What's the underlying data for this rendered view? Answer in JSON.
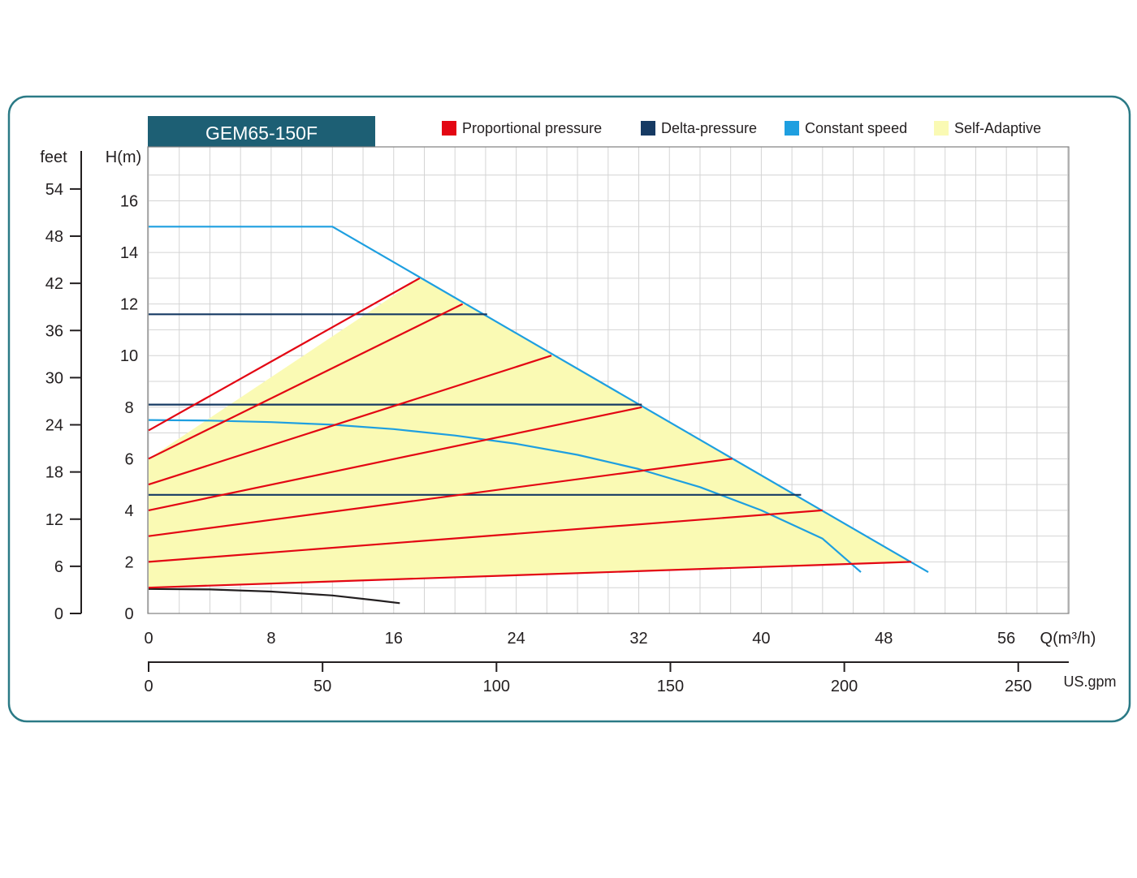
{
  "chart_data": {
    "type": "line",
    "title": "GEM65-150F",
    "xlabel": "Q(m³/h)",
    "ylabel": "H(m)",
    "x2label": "US.gpm",
    "y2label": "feet",
    "xlim": [
      0,
      60
    ],
    "ylim": [
      0,
      16
    ],
    "y_extra_top": 1,
    "x_ticks": [
      0,
      8,
      16,
      24,
      32,
      40,
      48,
      56
    ],
    "y_ticks": [
      0,
      2,
      4,
      6,
      8,
      10,
      12,
      14,
      16
    ],
    "gpm_ticks": [
      0,
      50,
      100,
      150,
      200,
      250
    ],
    "feet_ticks": [
      0,
      6,
      12,
      18,
      24,
      30,
      36,
      42,
      48,
      54
    ],
    "grid": true,
    "legend": [
      {
        "name": "Proportional pressure",
        "color": "#e30613"
      },
      {
        "name": "Delta-pressure",
        "color": "#163a63"
      },
      {
        "name": "Constant speed",
        "color": "#1e9fe0"
      },
      {
        "name": "Self-Adaptive",
        "color": "#fafab4"
      }
    ],
    "self_adaptive_region": [
      [
        0,
        1.0
      ],
      [
        0,
        6.0
      ],
      [
        17.7,
        13.0
      ],
      [
        49.8,
        2.0
      ]
    ],
    "series": [
      {
        "group": "Constant speed",
        "color": "#1e9fe0",
        "points": [
          [
            0,
            15.0
          ],
          [
            12.0,
            15.0
          ],
          [
            50.9,
            1.6
          ]
        ]
      },
      {
        "group": "Constant speed",
        "color": "#1e9fe0",
        "points": [
          [
            0,
            7.5
          ],
          [
            4,
            7.48
          ],
          [
            8,
            7.42
          ],
          [
            12,
            7.32
          ],
          [
            16,
            7.15
          ],
          [
            20,
            6.9
          ],
          [
            24,
            6.58
          ],
          [
            28,
            6.15
          ],
          [
            32,
            5.6
          ],
          [
            36,
            4.9
          ],
          [
            40,
            4.0
          ],
          [
            44,
            2.9
          ],
          [
            46.5,
            1.6
          ]
        ]
      },
      {
        "group": "Self-Adaptive",
        "color": "#231f20",
        "points": [
          [
            0,
            0.95
          ],
          [
            4,
            0.93
          ],
          [
            8,
            0.85
          ],
          [
            12,
            0.7
          ],
          [
            15,
            0.5
          ],
          [
            16.4,
            0.4
          ]
        ]
      },
      {
        "group": "Delta-pressure",
        "color": "#163a63",
        "points": [
          [
            0,
            11.6
          ],
          [
            22.1,
            11.6
          ]
        ]
      },
      {
        "group": "Delta-pressure",
        "color": "#163a63",
        "points": [
          [
            0,
            8.1
          ],
          [
            32.2,
            8.1
          ]
        ]
      },
      {
        "group": "Delta-pressure",
        "color": "#163a63",
        "points": [
          [
            0,
            4.6
          ],
          [
            42.6,
            4.6
          ]
        ]
      },
      {
        "group": "Proportional pressure",
        "color": "#e30613",
        "points": [
          [
            0,
            7.1
          ],
          [
            17.7,
            13.0
          ]
        ]
      },
      {
        "group": "Proportional pressure",
        "color": "#e30613",
        "points": [
          [
            0,
            6.0
          ],
          [
            20.5,
            12.0
          ]
        ]
      },
      {
        "group": "Proportional pressure",
        "color": "#e30613",
        "points": [
          [
            0,
            5.0
          ],
          [
            26.3,
            10.0
          ]
        ]
      },
      {
        "group": "Proportional pressure",
        "color": "#e30613",
        "points": [
          [
            0,
            4.0
          ],
          [
            32.2,
            8.0
          ]
        ]
      },
      {
        "group": "Proportional pressure",
        "color": "#e30613",
        "points": [
          [
            0,
            3.0
          ],
          [
            38.1,
            6.0
          ]
        ]
      },
      {
        "group": "Proportional pressure",
        "color": "#e30613",
        "points": [
          [
            0,
            2.0
          ],
          [
            44.0,
            4.0
          ]
        ]
      },
      {
        "group": "Proportional pressure",
        "color": "#e30613",
        "points": [
          [
            0,
            1.0
          ],
          [
            49.8,
            2.0
          ]
        ]
      }
    ]
  }
}
